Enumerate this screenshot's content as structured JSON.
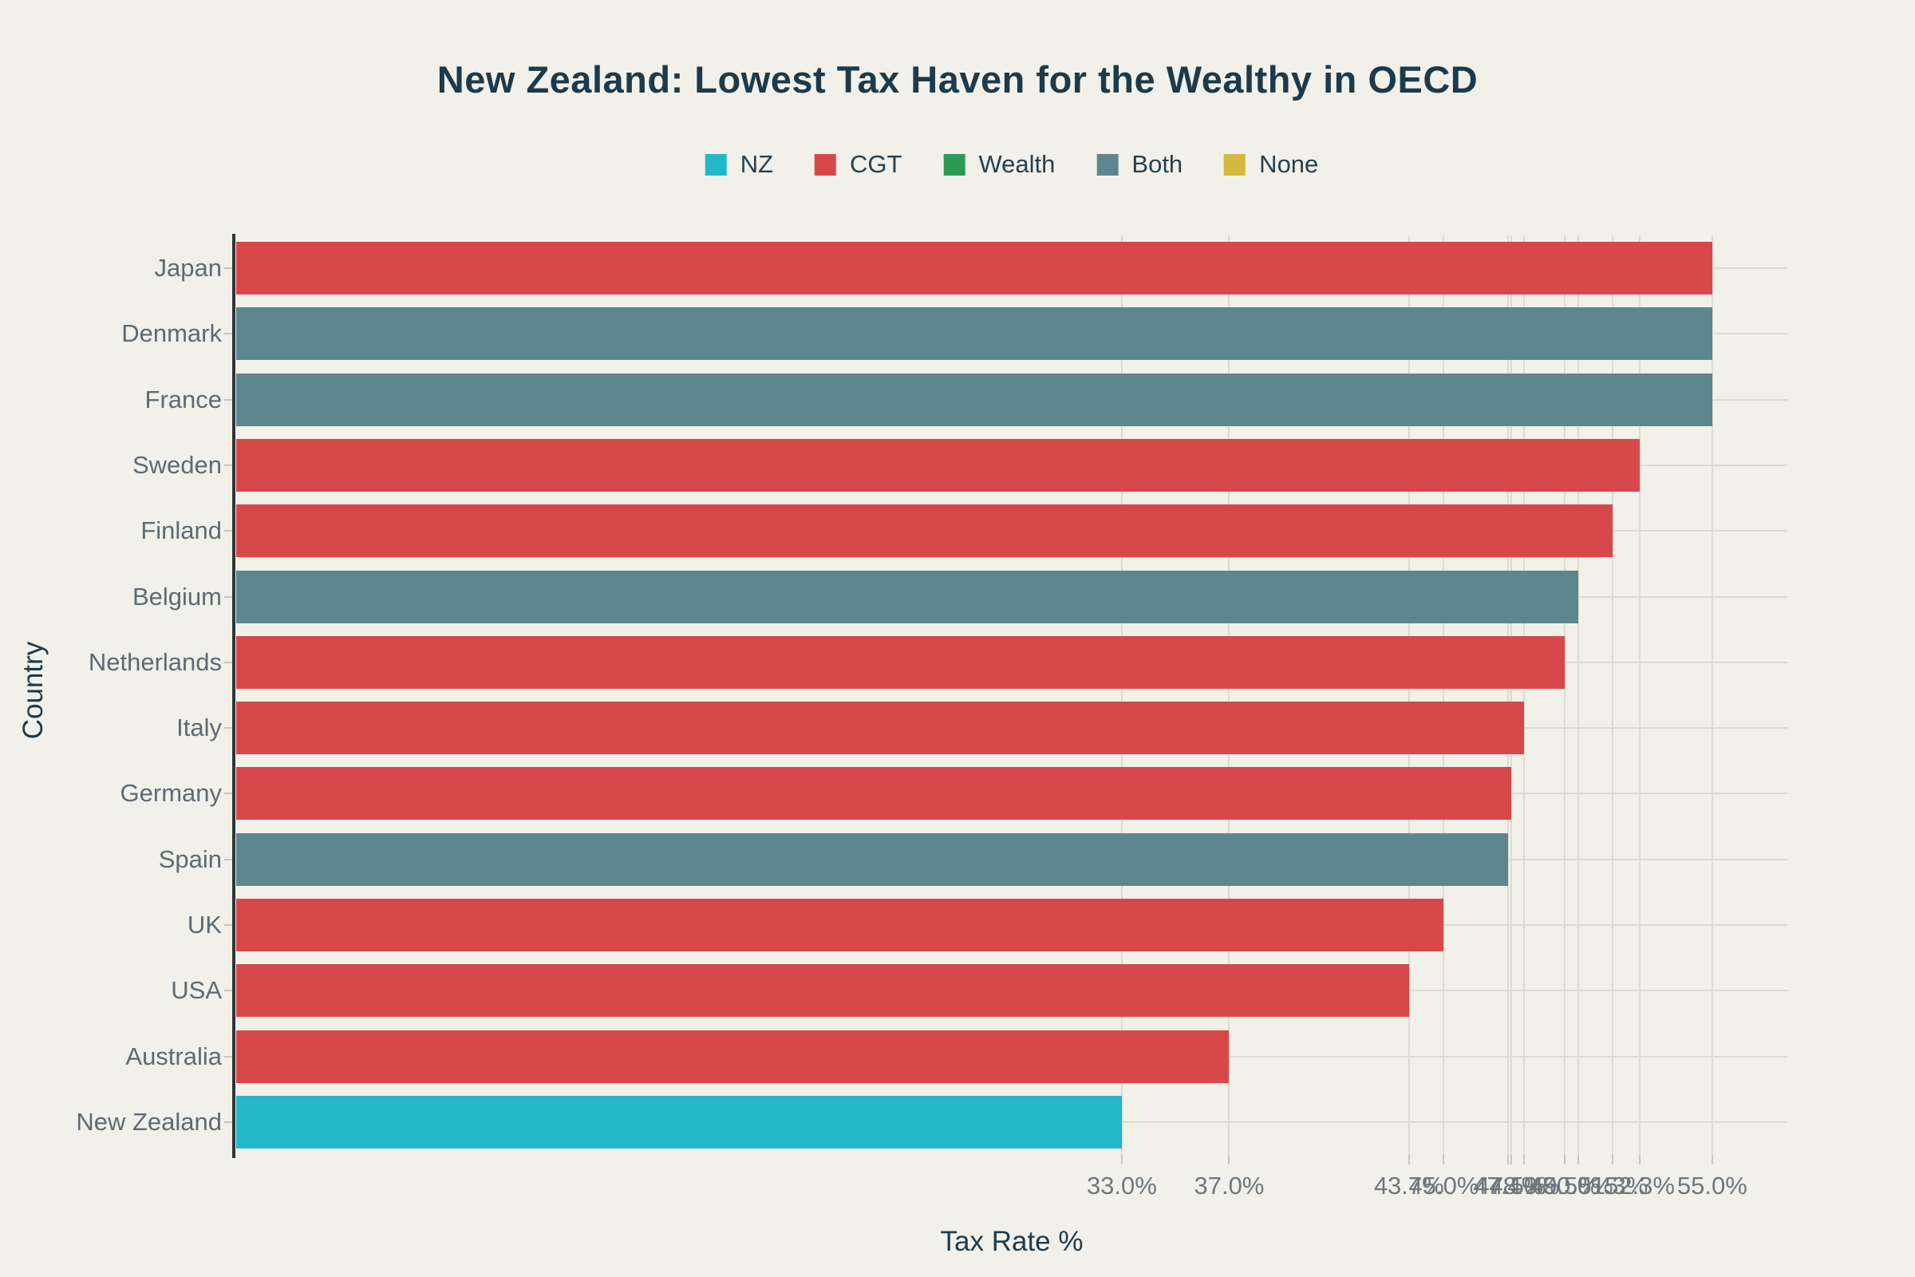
{
  "title": "New Zealand: Lowest Tax Haven for the Wealthy in OECD",
  "theme": {
    "background": "#f1f1ea",
    "title_color": "#1c3a4a",
    "axis_title_color": "#1d3b4b",
    "y_label_color": "#5d6a73",
    "x_tick_color": "#6e777d",
    "grid_color": "#dcdad2",
    "axis_line_color": "#2e3438",
    "tick_mark_color": "#c8c6be"
  },
  "chart_data": {
    "type": "bar",
    "orientation": "horizontal",
    "title": "New Zealand: Lowest Tax Haven for the Wealthy in OECD",
    "xlabel": "Tax Rate %",
    "ylabel": "Country",
    "xlim": [
      0,
      57.8
    ],
    "grid": true,
    "legend_position": "top-center",
    "categories": [
      "Japan",
      "Denmark",
      "France",
      "Sweden",
      "Finland",
      "Belgium",
      "Netherlands",
      "Italy",
      "Germany",
      "Spain",
      "UK",
      "USA",
      "Australia",
      "New Zealand"
    ],
    "values": [
      55.0,
      55.0,
      55.0,
      52.3,
      51.3,
      50.0,
      49.5,
      48.0,
      47.5,
      47.4,
      45.0,
      43.7,
      37.0,
      33.0
    ],
    "groups": [
      "CGT",
      "Both",
      "Both",
      "CGT",
      "CGT",
      "Both",
      "CGT",
      "CGT",
      "CGT",
      "Both",
      "CGT",
      "CGT",
      "CGT",
      "NZ"
    ],
    "x_ticks": [
      33.0,
      37.0,
      43.7,
      45.0,
      47.4,
      47.5,
      48.0,
      49.5,
      50.0,
      51.3,
      52.3,
      55.0
    ],
    "x_tick_labels": [
      "33.0%",
      "37.0%",
      "43.7%",
      "45.0%",
      "47.4%",
      "47.5%",
      "48.0%",
      "49.5%",
      "50.0%",
      "51.3%",
      "52.3%",
      "55.0%"
    ],
    "legend": [
      {
        "label": "NZ",
        "color": "#24b6c9"
      },
      {
        "label": "CGT",
        "color": "#d8484a"
      },
      {
        "label": "Wealth",
        "color": "#2e9956"
      },
      {
        "label": "Both",
        "color": "#5e868e"
      },
      {
        "label": "None",
        "color": "#d3b93f"
      }
    ],
    "colors": {
      "NZ": "#24b6c9",
      "CGT": "#d8484a",
      "Wealth": "#2e9956",
      "Both": "#5e868e",
      "None": "#d3b93f"
    }
  }
}
